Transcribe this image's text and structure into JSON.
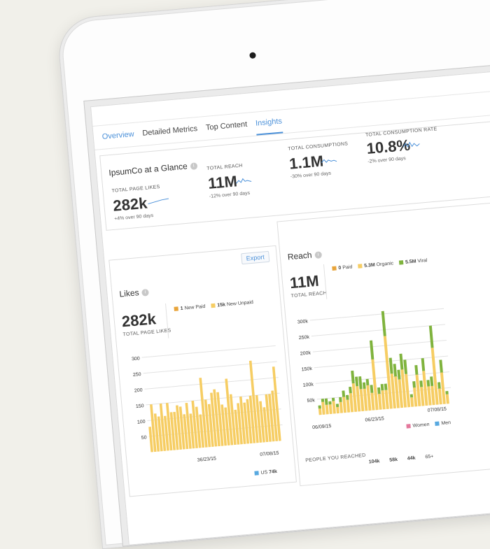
{
  "tabs": [
    "Overview",
    "Detailed Metrics",
    "Top Content",
    "Insights"
  ],
  "export_label": "Export",
  "glance": {
    "title": "IpsumCo at a Glance",
    "metrics": [
      {
        "label": "TOTAL PAGE LIKES",
        "value": "282k",
        "delta": "+4% over 90 days"
      },
      {
        "label": "TOTAL REACH",
        "value": "11M",
        "delta": "-12% over 90 days"
      },
      {
        "label": "TOTAL CONSUMPTIONS",
        "value": "1.1M",
        "delta": "-30% over 90 days"
      },
      {
        "label": "TOTAL CONSUMPTION RATE",
        "value": "10.8%",
        "delta": "-2% over 90 days"
      }
    ]
  },
  "likes": {
    "title": "Likes",
    "value": "282k",
    "label": "TOTAL PAGE LIKES",
    "legend": [
      {
        "value": "1",
        "name": "New Paid",
        "color": "#e8a43a"
      },
      {
        "value": "15k",
        "name": "New Unpaid",
        "color": "#f6cd63"
      }
    ],
    "yticks": [
      "300",
      "250",
      "200",
      "150",
      "100",
      "50"
    ],
    "xticks": [
      "36/23/15",
      "07/08/15"
    ],
    "footer_value": "74k",
    "footer_label": "US"
  },
  "reach": {
    "title": "Reach",
    "value": "11M",
    "label": "TOTAL REACH",
    "legend": [
      {
        "value": "0",
        "name": "Paid",
        "color": "#e8a43a"
      },
      {
        "value": "5.3M",
        "name": "Organic",
        "color": "#f6cd63"
      },
      {
        "value": "5.5M",
        "name": "Viral",
        "color": "#7fb33d"
      }
    ],
    "yticks": [
      "300k",
      "250k",
      "200k",
      "150k",
      "100k",
      "50k"
    ],
    "xticks": [
      "06/09/15",
      "06/23/15",
      "07/08/15"
    ],
    "people_label": "PEOPLE YOU REACHED",
    "gender": [
      {
        "name": "Women",
        "color": "#e4789c"
      },
      {
        "name": "Men",
        "color": "#58a9e0"
      }
    ],
    "age_values": [
      "104k",
      "58k",
      "44k"
    ],
    "age_last": "65+"
  },
  "chart_data": [
    {
      "type": "bar",
      "title": "Likes",
      "ylim": [
        0,
        300
      ],
      "series": [
        {
          "name": "New Unpaid",
          "values": [
            80,
            150,
            120,
            110,
            150,
            110,
            150,
            120,
            120,
            140,
            135,
            110,
            145,
            110,
            150,
            130,
            105,
            220,
            150,
            135,
            170,
            180,
            170,
            130,
            120,
            210,
            160,
            110,
            130,
            150,
            130,
            140,
            150,
            260,
            150,
            130,
            110,
            150,
            150,
            160,
            235
          ]
        }
      ]
    },
    {
      "type": "bar",
      "title": "Reach",
      "ylim": [
        0,
        300000
      ],
      "series": [
        {
          "name": "Organic",
          "values": [
            20000,
            40000,
            30000,
            30000,
            40000,
            20000,
            35000,
            50000,
            40000,
            60000,
            90000,
            80000,
            70000,
            70000,
            80000,
            55000,
            160000,
            50000,
            60000,
            60000,
            230000,
            110000,
            100000,
            90000,
            120000,
            105000,
            30000,
            60000,
            100000,
            60000,
            110000,
            60000,
            60000,
            180000,
            50000,
            100000,
            30000
          ]
        },
        {
          "name": "Viral",
          "values": [
            10000,
            10000,
            20000,
            10000,
            10000,
            10000,
            15000,
            20000,
            15000,
            20000,
            40000,
            30000,
            40000,
            20000,
            20000,
            25000,
            60000,
            20000,
            20000,
            20000,
            90000,
            50000,
            40000,
            30000,
            50000,
            45000,
            10000,
            20000,
            30000,
            20000,
            40000,
            20000,
            30000,
            70000,
            20000,
            40000,
            10000
          ]
        }
      ]
    }
  ]
}
